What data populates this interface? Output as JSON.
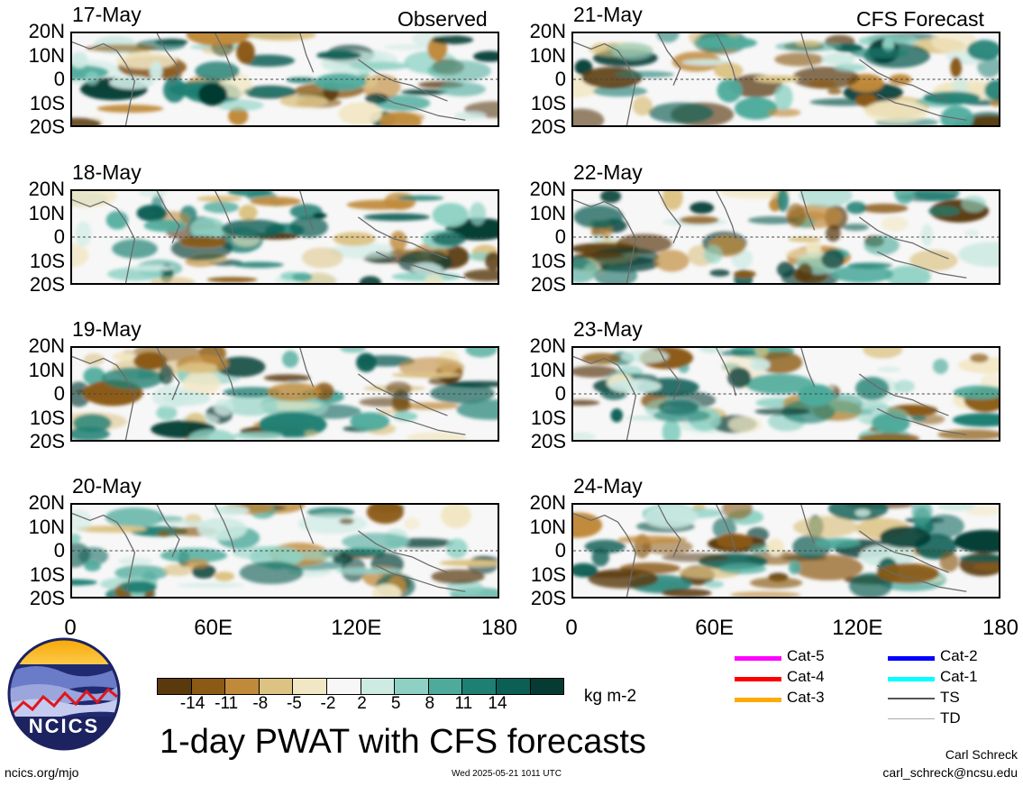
{
  "left_header": "Observed",
  "right_header": "CFS Forecast",
  "latitude_labels": [
    "20N",
    "10N",
    "0",
    "10S",
    "20S"
  ],
  "longitude_labels": [
    "0",
    "60E",
    "120E",
    "180"
  ],
  "panels": {
    "left": [
      {
        "date": "17-May"
      },
      {
        "date": "18-May"
      },
      {
        "date": "19-May"
      },
      {
        "date": "20-May"
      }
    ],
    "right": [
      {
        "date": "21-May"
      },
      {
        "date": "22-May"
      },
      {
        "date": "23-May"
      },
      {
        "date": "24-May"
      }
    ]
  },
  "colorbar": {
    "colors": [
      "#5a3a0c",
      "#8b5a14",
      "#c08a3a",
      "#dcc384",
      "#f2e7c4",
      "#f7f7f7",
      "#cdeae3",
      "#8ed1c4",
      "#4eab9c",
      "#1e7f73",
      "#0b5f55",
      "#063b33"
    ],
    "ticks": [
      "-14",
      "-11",
      "-8",
      "-5",
      "-2",
      "2",
      "5",
      "8",
      "11",
      "14"
    ],
    "units": "kg m-2"
  },
  "storm_legend": [
    {
      "label": "Cat-5",
      "color": "#ff00ff"
    },
    {
      "label": "Cat-4",
      "color": "#ff0000"
    },
    {
      "label": "Cat-3",
      "color": "#ffaa00"
    },
    {
      "label": "Cat-2",
      "color": "#0000ff"
    },
    {
      "label": "Cat-1",
      "color": "#00ffff"
    },
    {
      "label": "TS",
      "color": "#555555"
    },
    {
      "label": "TD",
      "color": "#aaaaaa"
    }
  ],
  "logo_text": "NCICS",
  "main_title": "1-day PWAT with CFS forecasts",
  "website": "ncics.org/mjo",
  "timestamp": "Wed 2025-05-21 1011 UTC",
  "author_name": "Carl Schreck",
  "author_email": "carl_schreck@ncsu.edu"
}
